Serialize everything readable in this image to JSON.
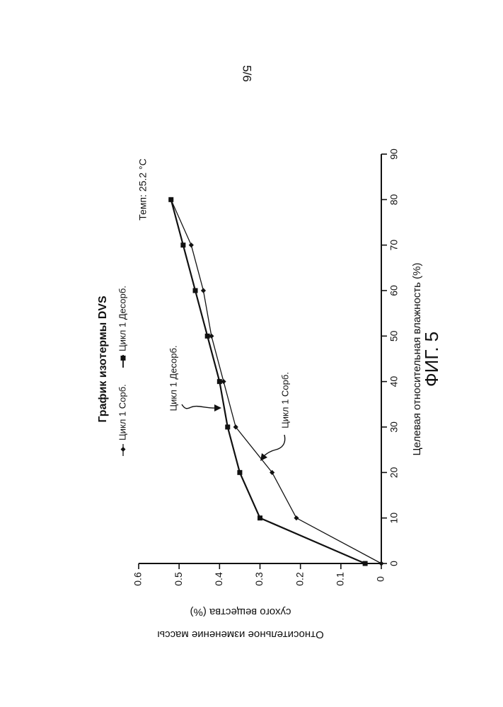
{
  "page": {
    "page_number": "5/6",
    "figure_label": "ФИГ. 5"
  },
  "colors": {
    "ink": "#111111",
    "background": "#ffffff"
  },
  "chart_data": {
    "type": "line",
    "title": "График изотермы DVS",
    "xlabel": "Целевая относительная влажность (%)",
    "ylabel_line1": "Относительное изменение массы",
    "ylabel_line2": "сухого вещества (%)",
    "temperature_note": "Темп: 25.2 °C",
    "xlim": [
      0,
      90
    ],
    "ylim": [
      0,
      0.6
    ],
    "x_ticks": [
      "0",
      "10",
      "20",
      "30",
      "40",
      "50",
      "60",
      "70",
      "80",
      "90"
    ],
    "y_ticks": [
      "0",
      "0.1",
      "0.2",
      "0.3",
      "0.4",
      "0.5",
      "0.6"
    ],
    "grid": false,
    "orientation": "rotated 90° counter-clockwise on page",
    "legend": {
      "placement": "top",
      "entries": [
        {
          "label": "Цикл 1 Сорб.",
          "marker": "diamond"
        },
        {
          "label": "Цикл 1 Десорб.",
          "marker": "square"
        }
      ]
    },
    "annotations": [
      {
        "text": "Цикл 1 Десорб.",
        "points_to": "desorption"
      },
      {
        "text": "Цикл 1 Сорб.",
        "points_to": "sorption"
      }
    ],
    "series": [
      {
        "name": "Цикл 1 Сорб.",
        "marker": "diamond",
        "x": [
          0,
          10,
          20,
          30,
          40,
          50,
          60,
          70,
          80
        ],
        "y": [
          0.0,
          0.21,
          0.27,
          0.36,
          0.39,
          0.42,
          0.44,
          0.47,
          0.52
        ]
      },
      {
        "name": "Цикл 1 Десорб.",
        "marker": "square",
        "x": [
          0,
          10,
          20,
          30,
          40,
          50,
          60,
          70,
          80
        ],
        "y": [
          0.04,
          0.3,
          0.35,
          0.38,
          0.4,
          0.43,
          0.46,
          0.49,
          0.52
        ]
      }
    ]
  }
}
